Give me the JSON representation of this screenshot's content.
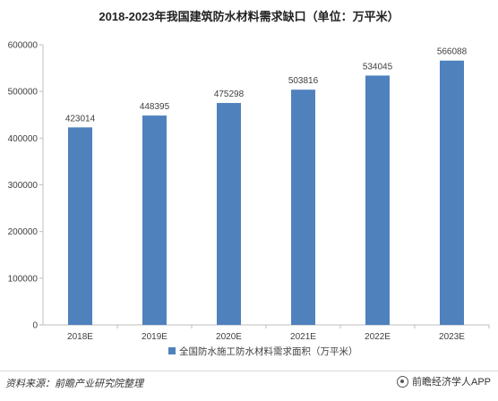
{
  "title": "2018-2023年我国建筑防水材料需求缺口（单位：万平米）",
  "source": "资料来源：前瞻产业研究院整理",
  "brand": "前瞻经济学人APP",
  "colors": {
    "bar": "#4f81bd",
    "axis": "#bfbfbf",
    "text": "#404040"
  },
  "chart_data": {
    "type": "bar",
    "title": "2018-2023年我国建筑防水材料需求缺口（单位：万平米）",
    "xlabel": "",
    "ylabel": "",
    "categories": [
      "2018E",
      "2019E",
      "2020E",
      "2021E",
      "2022E",
      "2023E"
    ],
    "series": [
      {
        "name": "全国防水施工防水材料需求面积（万平米）",
        "values": [
          423014,
          448395,
          475298,
          503816,
          534045,
          566088
        ]
      }
    ],
    "ylim": [
      0,
      600000
    ],
    "yticks": [
      "0",
      "100000",
      "200000",
      "300000",
      "400000",
      "500000",
      "600000"
    ],
    "grid": false,
    "legend": "bottom",
    "data_labels": true
  }
}
